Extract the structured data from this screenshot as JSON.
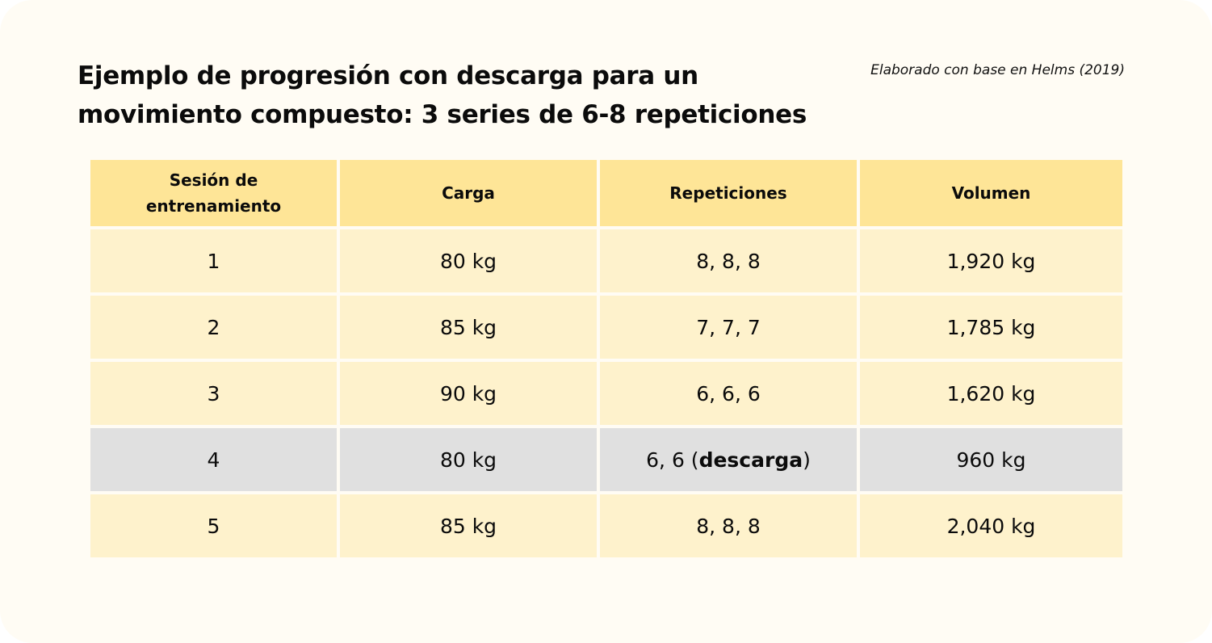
{
  "title": {
    "line1": "Ejemplo de progresión con descarga para un",
    "line2": "movimiento compuesto: 3 series de 6-8 repeticiones"
  },
  "source": "Elaborado con base en Helms (2019)",
  "colors": {
    "card_background": "#fffcf4",
    "header_background": "#fee597",
    "row_background": "#fef2cc",
    "deload_row_background": "#e0e0e0"
  },
  "table": {
    "headers": [
      {
        "line1": "Sesión de",
        "line2": "entrenamiento"
      },
      {
        "line1": "Carga"
      },
      {
        "line1": "Repeticiones"
      },
      {
        "line1": "Volumen"
      }
    ],
    "rows": [
      {
        "session": "1",
        "load": "80 kg",
        "reps": "8, 8, 8",
        "volume": "1,920 kg",
        "deload": false
      },
      {
        "session": "2",
        "load": "85 kg",
        "reps": "7, 7, 7",
        "volume": "1,785 kg",
        "deload": false
      },
      {
        "session": "3",
        "load": "90 kg",
        "reps": "6, 6, 6",
        "volume": "1,620 kg",
        "deload": false
      },
      {
        "session": "4",
        "load": "80 kg",
        "reps_prefix": "6, 6 (",
        "reps_bold": "descarga",
        "reps_suffix": ")",
        "volume": "960 kg",
        "deload": true
      },
      {
        "session": "5",
        "load": "85 kg",
        "reps": "8, 8, 8",
        "volume": "2,040 kg",
        "deload": false
      }
    ]
  }
}
